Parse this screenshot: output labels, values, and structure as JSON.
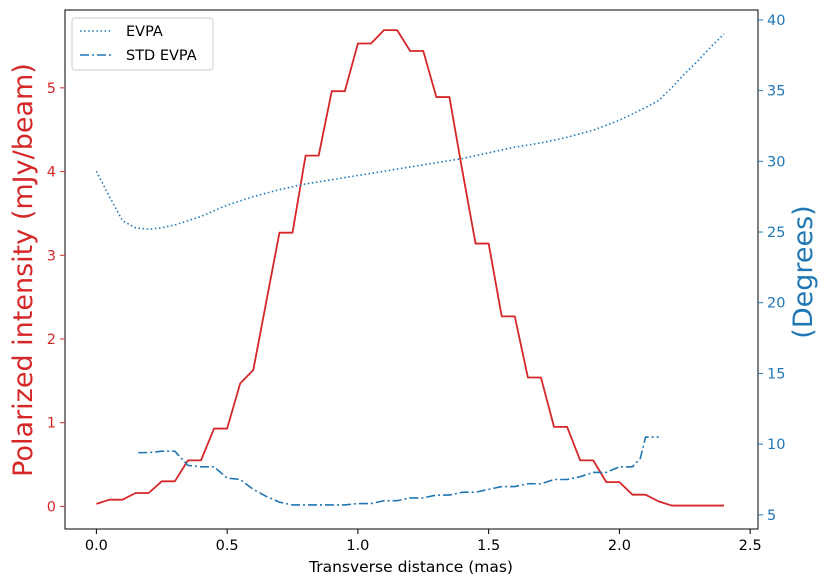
{
  "chart_data": {
    "type": "line",
    "xlabel": "Transverse distance (mas)",
    "ylabel_left": "Polarized intensity (mJy/beam)",
    "ylabel_right": "(Degrees)",
    "xlim": [
      -0.12,
      2.53
    ],
    "ylim_left": [
      -0.27,
      5.93
    ],
    "ylim_right": [
      4.0,
      40.7
    ],
    "x_ticks": [
      0.0,
      0.5,
      1.0,
      1.5,
      2.0,
      2.5
    ],
    "x_tick_labels": [
      "0.0",
      "0.5",
      "1.0",
      "1.5",
      "2.0",
      "2.5"
    ],
    "y_left_ticks": [
      0,
      1,
      2,
      3,
      4,
      5
    ],
    "y_left_tick_labels": [
      "0",
      "1",
      "2",
      "3",
      "4",
      "5"
    ],
    "y_right_ticks": [
      5,
      10,
      15,
      20,
      25,
      30,
      35,
      40
    ],
    "y_right_tick_labels": [
      "5",
      "10",
      "15",
      "20",
      "25",
      "30",
      "35",
      "40"
    ],
    "grid": false,
    "legend_position": "top-left",
    "colors": {
      "left_axis": "#d62728",
      "right_axis": "#1f77b4"
    },
    "series": [
      {
        "name": "",
        "axis": "left",
        "style": "solid",
        "color": "#d62728",
        "x": [
          0.0,
          0.05,
          0.1,
          0.15,
          0.2,
          0.25,
          0.3,
          0.35,
          0.4,
          0.45,
          0.5,
          0.55,
          0.6,
          0.65,
          0.7,
          0.75,
          0.8,
          0.85,
          0.9,
          0.95,
          1.0,
          1.05,
          1.1,
          1.15,
          1.2,
          1.25,
          1.3,
          1.35,
          1.4,
          1.45,
          1.5,
          1.55,
          1.6,
          1.65,
          1.7,
          1.75,
          1.8,
          1.85,
          1.9,
          1.95,
          2.0,
          2.05,
          2.1,
          2.15,
          2.2,
          2.25,
          2.3,
          2.35,
          2.4
        ],
        "y": [
          0.03,
          0.08,
          0.08,
          0.16,
          0.16,
          0.3,
          0.3,
          0.55,
          0.55,
          0.93,
          0.93,
          1.47,
          1.63,
          2.45,
          3.27,
          3.27,
          4.19,
          4.19,
          4.96,
          4.96,
          5.53,
          5.53,
          5.69,
          5.69,
          5.44,
          5.44,
          4.89,
          4.89,
          4.0,
          3.14,
          3.14,
          2.27,
          2.27,
          1.54,
          1.54,
          0.95,
          0.95,
          0.55,
          0.55,
          0.29,
          0.29,
          0.14,
          0.14,
          0.06,
          0.01,
          0.01,
          0.01,
          0.01,
          0.01
        ]
      },
      {
        "name": "EVPA",
        "axis": "right",
        "style": "dotted",
        "color": "#1f77b4",
        "x": [
          0.0,
          0.05,
          0.1,
          0.15,
          0.2,
          0.25,
          0.3,
          0.35,
          0.4,
          0.45,
          0.5,
          0.6,
          0.7,
          0.8,
          0.9,
          1.0,
          1.1,
          1.2,
          1.3,
          1.4,
          1.5,
          1.6,
          1.7,
          1.8,
          1.9,
          2.0,
          2.1,
          2.15,
          2.2,
          2.25,
          2.3,
          2.35,
          2.4
        ],
        "y": [
          29.3,
          27.5,
          25.8,
          25.3,
          25.2,
          25.3,
          25.5,
          25.8,
          26.1,
          26.5,
          26.9,
          27.5,
          28.0,
          28.4,
          28.7,
          29.0,
          29.3,
          29.6,
          29.9,
          30.2,
          30.6,
          31.0,
          31.3,
          31.7,
          32.2,
          32.9,
          33.8,
          34.3,
          35.2,
          36.2,
          37.1,
          38.1,
          39.0
        ]
      },
      {
        "name": "STD EVPA",
        "axis": "right",
        "style": "dashdot",
        "color": "#1f77b4",
        "x": [
          0.16,
          0.2,
          0.25,
          0.3,
          0.35,
          0.4,
          0.45,
          0.5,
          0.55,
          0.6,
          0.65,
          0.7,
          0.75,
          0.8,
          0.85,
          0.9,
          0.95,
          1.0,
          1.05,
          1.1,
          1.15,
          1.2,
          1.25,
          1.3,
          1.35,
          1.4,
          1.45,
          1.5,
          1.55,
          1.6,
          1.65,
          1.7,
          1.75,
          1.8,
          1.85,
          1.9,
          1.95,
          2.0,
          2.05,
          2.08,
          2.1,
          2.15
        ],
        "y": [
          9.4,
          9.4,
          9.5,
          9.5,
          8.5,
          8.4,
          8.4,
          7.6,
          7.5,
          6.8,
          6.3,
          5.9,
          5.7,
          5.7,
          5.7,
          5.7,
          5.7,
          5.8,
          5.8,
          6.0,
          6.0,
          6.2,
          6.2,
          6.4,
          6.4,
          6.6,
          6.6,
          6.8,
          7.0,
          7.0,
          7.2,
          7.2,
          7.5,
          7.5,
          7.7,
          8.0,
          8.0,
          8.4,
          8.4,
          9.0,
          10.5,
          10.5
        ]
      }
    ]
  }
}
